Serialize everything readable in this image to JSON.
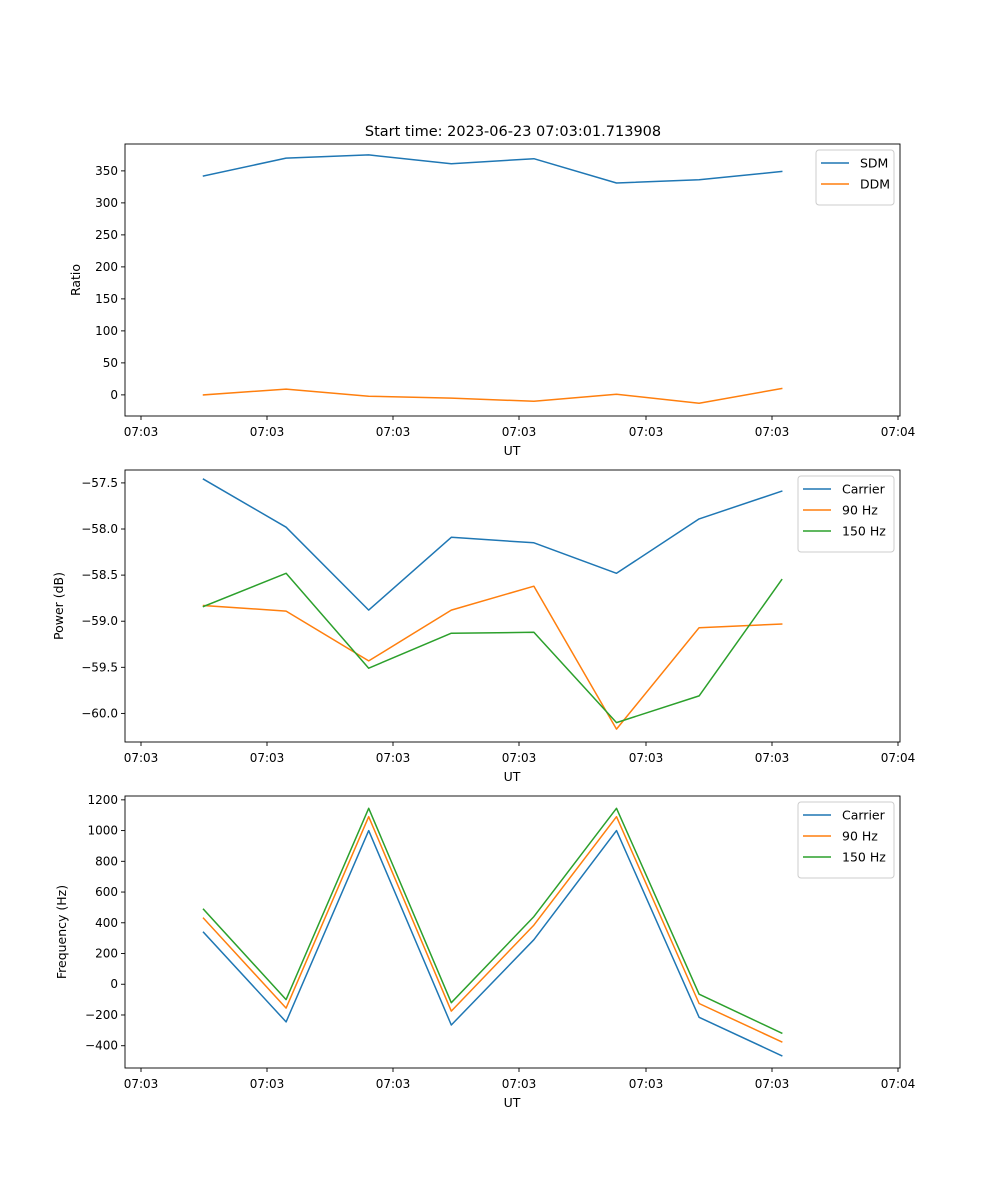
{
  "chart_data": [
    {
      "type": "line",
      "title": "Start time: 2023-06-23 07:03:01.713908",
      "xlabel": "UT",
      "ylabel": "Ratio",
      "xticks": [
        "07:03",
        "07:03",
        "07:03",
        "07:03",
        "07:03",
        "07:03",
        "07:04"
      ],
      "yticks": [
        0,
        50,
        100,
        150,
        200,
        250,
        300,
        350
      ],
      "ylim": [
        -33,
        392
      ],
      "legend_position": "top-right",
      "series": [
        {
          "name": "SDM",
          "color": "#1f77b4",
          "values": [
            342,
            370,
            375,
            361,
            369,
            331,
            336,
            349
          ]
        },
        {
          "name": "DDM",
          "color": "#ff7f0e",
          "values": [
            0,
            9,
            -2,
            -5,
            -10,
            1,
            -13,
            10
          ]
        }
      ]
    },
    {
      "type": "line",
      "title": "",
      "xlabel": "UT",
      "ylabel": "Power (dB)",
      "xticks": [
        "07:03",
        "07:03",
        "07:03",
        "07:03",
        "07:03",
        "07:03",
        "07:04"
      ],
      "yticks": [
        -57.5,
        -58.0,
        -58.5,
        -59.0,
        -59.5,
        -60.0
      ],
      "ytick_labels": [
        "−57.5",
        "−58.0",
        "−58.5",
        "−59.0",
        "−59.5",
        "−60.0"
      ],
      "ylim": [
        -60.31,
        -57.36
      ],
      "legend_position": "top-right",
      "series": [
        {
          "name": "Carrier",
          "color": "#1f77b4",
          "values": [
            -57.46,
            -57.98,
            -58.88,
            -58.09,
            -58.15,
            -58.48,
            -57.89,
            -57.59
          ]
        },
        {
          "name": "90 Hz",
          "color": "#ff7f0e",
          "values": [
            -58.83,
            -58.89,
            -59.43,
            -58.88,
            -58.62,
            -60.17,
            -59.07,
            -59.03
          ]
        },
        {
          "name": "150 Hz",
          "color": "#2ca02c",
          "values": [
            -58.84,
            -58.48,
            -59.51,
            -59.13,
            -59.12,
            -60.1,
            -59.81,
            -58.55
          ]
        }
      ]
    },
    {
      "type": "line",
      "title": "",
      "xlabel": "UT",
      "ylabel": "Frequency (Hz)",
      "xticks": [
        "07:03",
        "07:03",
        "07:03",
        "07:03",
        "07:03",
        "07:03",
        "07:04"
      ],
      "yticks": [
        -400,
        -200,
        0,
        200,
        400,
        600,
        800,
        1000,
        1200
      ],
      "ytick_labels": [
        "−400",
        "−200",
        "0",
        "200",
        "400",
        "600",
        "800",
        "1000",
        "1200"
      ],
      "ylim": [
        -545,
        1225
      ],
      "legend_position": "top-right",
      "series": [
        {
          "name": "Carrier",
          "color": "#1f77b4",
          "values": [
            338,
            -245,
            1000,
            -265,
            290,
            1000,
            -215,
            -465
          ]
        },
        {
          "name": "90 Hz",
          "color": "#ff7f0e",
          "values": [
            430,
            -155,
            1090,
            -175,
            385,
            1090,
            -125,
            -375
          ]
        },
        {
          "name": "150 Hz",
          "color": "#2ca02c",
          "values": [
            488,
            -100,
            1145,
            -120,
            440,
            1145,
            -65,
            -318
          ]
        }
      ]
    }
  ]
}
